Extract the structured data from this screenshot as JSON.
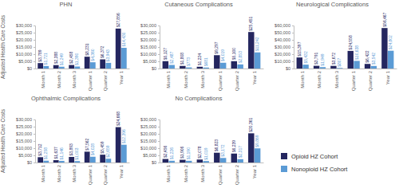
{
  "chart_data": [
    {
      "type": "bar",
      "title": "PHN",
      "y_label": "Adjusted Health Care Costs",
      "categories": [
        "Month 1",
        "Month 2",
        "Month 3",
        "Quarter 1",
        "Quarter 2",
        "Year 1"
      ],
      "series": [
        {
          "color": "#24265f",
          "values": [
            3789,
            2388,
            2458,
            8231,
            6372,
            27856
          ],
          "value_labels": [
            "$3,789",
            "$2,388",
            "$2,458",
            "$8,231",
            "$6,372",
            "$27,856"
          ]
        },
        {
          "color": "#5b9bd5",
          "values": [
            1721,
            1249,
            1390,
            4360,
            3943,
            14430
          ],
          "value_labels": [
            "$1,721",
            "$1,249",
            "$1,390",
            "$4,360",
            "$3,943",
            "$14,430"
          ]
        }
      ],
      "ylim": [
        0,
        30000
      ],
      "yticks": [
        {
          "value": 0,
          "label": "$0"
        },
        {
          "value": 5000,
          "label": "$5,000"
        },
        {
          "value": 10000,
          "label": "$10,000"
        },
        {
          "value": 15000,
          "label": "$15,000"
        },
        {
          "value": 20000,
          "label": "$20,000"
        },
        {
          "value": 25000,
          "label": "$25,000"
        },
        {
          "value": 30000,
          "label": "$30,000"
        }
      ],
      "grid": false,
      "data_labels": true
    },
    {
      "type": "bar",
      "title": "Cutaneous Complications",
      "categories": [
        "Month 1",
        "Month 2",
        "Month 3",
        "Quarter 1",
        "Quarter 2",
        "Year 1"
      ],
      "series": [
        {
          "color": "#24265f",
          "values": [
            5127,
            1808,
            1224,
            9297,
            5100,
            25451
          ],
          "value_labels": [
            "$5,127",
            "$1,808",
            "$1,224",
            "$9,297",
            "$5,100",
            "$25,451"
          ]
        },
        {
          "color": "#5b9bd5",
          "values": [
            2487,
            773,
            681,
            4019,
            2853,
            11242
          ],
          "value_labels": [
            "$2,487",
            "$773",
            "$681",
            "$4,019",
            "$2,853",
            "$11,242"
          ]
        }
      ],
      "ylim": [
        0,
        30000
      ],
      "yticks": [
        {
          "value": 0,
          "label": "$0"
        },
        {
          "value": 5000,
          "label": "$5,000"
        },
        {
          "value": 10000,
          "label": "$10,000"
        },
        {
          "value": 15000,
          "label": "$15,000"
        },
        {
          "value": 20000,
          "label": "$20,000"
        },
        {
          "value": 25000,
          "label": "$25,000"
        },
        {
          "value": 30000,
          "label": "$30,000"
        }
      ],
      "grid": false,
      "data_labels": true
    },
    {
      "type": "bar",
      "title": "Neurological Complications",
      "categories": [
        "Month 1",
        "Month 2",
        "Month 3",
        "Quarter 1",
        "Quarter 2",
        "Year 1"
      ],
      "series": [
        {
          "color": "#24265f",
          "values": [
            15397,
            3791,
            3672,
            24558,
            6422,
            56467
          ],
          "value_labels": [
            "$15,397",
            "$3,791",
            "$3,672",
            "$24,558",
            "$6,422",
            "$56,467"
          ]
        },
        {
          "color": "#5b9bd5",
          "values": [
            5432,
            1949,
            807,
            10638,
            3542,
            24802
          ],
          "value_labels": [
            "$5,432",
            "$1,949",
            "$807",
            "$10,638",
            "$3,542",
            "$24,802"
          ]
        }
      ],
      "ylim": [
        0,
        60000
      ],
      "yticks": [
        {
          "value": 0,
          "label": "$0"
        },
        {
          "value": 10000,
          "label": "$10,000"
        },
        {
          "value": 20000,
          "label": "$20,000"
        },
        {
          "value": 30000,
          "label": "$30,000"
        },
        {
          "value": 40000,
          "label": "$40,000"
        },
        {
          "value": 50000,
          "label": "$50,000"
        },
        {
          "value": 60000,
          "label": "$60,000"
        }
      ],
      "grid": false,
      "data_labels": true
    },
    {
      "type": "bar",
      "title": "Ophthalmic Complications",
      "y_label": "Adjusted Health Care Costs",
      "categories": [
        "Month 1",
        "Month 2",
        "Month 3",
        "Quarter 1",
        "Quarter 2",
        "Year 1"
      ],
      "series": [
        {
          "color": "#24265f",
          "values": [
            3712,
            1637,
            3893,
            7562,
            5459,
            24668
          ],
          "value_labels": [
            "$3,712",
            "$1,637",
            "$3,893",
            "$7,562",
            "$5,459",
            "$24,668"
          ]
        },
        {
          "color": "#5b9bd5",
          "values": [
            1258,
            1146,
            1003,
            4028,
            2659,
            12396
          ],
          "value_labels": [
            "$1,258",
            "$1,146",
            "$1,003",
            "$4,028",
            "$2,659",
            "$12,396"
          ]
        }
      ],
      "ylim": [
        0,
        30000
      ],
      "yticks": [
        {
          "value": 0,
          "label": "$0"
        },
        {
          "value": 5000,
          "label": "$5,000"
        },
        {
          "value": 10000,
          "label": "$10,000"
        },
        {
          "value": 15000,
          "label": "$15,000"
        },
        {
          "value": 20000,
          "label": "$20,000"
        },
        {
          "value": 25000,
          "label": "$25,000"
        },
        {
          "value": 30000,
          "label": "$30,000"
        }
      ],
      "grid": false,
      "data_labels": true
    },
    {
      "type": "bar",
      "title": "No Complications",
      "categories": [
        "Month 1",
        "Month 2",
        "Month 3",
        "Quarter 1",
        "Quarter 2",
        "Year 1"
      ],
      "series": [
        {
          "name": "Opioid HZ Cohort",
          "color": "#24265f",
          "values": [
            2456,
            1906,
            2078,
            6823,
            6239,
            20361
          ],
          "value_labels": [
            "$2,456",
            "$1,906",
            "$2,078",
            "$6,823",
            "$6,239",
            "$20,361"
          ]
        },
        {
          "name": "Nonopioid HZ Cohort",
          "color": "#5b9bd5",
          "values": [
            1226,
            1190,
            1019,
            3172,
            2317,
            9869
          ],
          "value_labels": [
            "$1,226",
            "$1,190",
            "$1,019",
            "$3,172",
            "$2,317",
            "$9,869"
          ]
        }
      ],
      "ylim": [
        0,
        30000
      ],
      "yticks": [
        {
          "value": 0,
          "label": "$0"
        },
        {
          "value": 5000,
          "label": "$5,000"
        },
        {
          "value": 10000,
          "label": "$10,000"
        },
        {
          "value": 15000,
          "label": "$15,000"
        },
        {
          "value": 20000,
          "label": "$20,000"
        },
        {
          "value": 25000,
          "label": "$25,000"
        },
        {
          "value": 30000,
          "label": "$30,000"
        }
      ],
      "grid": false,
      "data_labels": true,
      "legend": "right"
    }
  ]
}
